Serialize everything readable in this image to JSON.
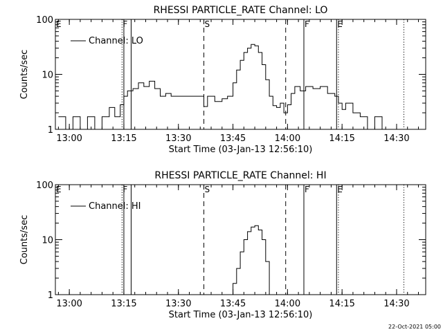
{
  "footer": {
    "timestamp": "22-Oct-2021 05:00"
  },
  "chart_data": [
    {
      "type": "line",
      "title": "RHESSI PARTICLE_RATE Channel: LO",
      "xlabel": "Start Time (03-Jan-13 12:56:10)",
      "ylabel": "Counts/sec",
      "y_scale": "log",
      "ylim": [
        1,
        100
      ],
      "xlim": [
        "12:56:10",
        "14:38:00"
      ],
      "x_ticks": [
        "13:00",
        "13:15",
        "13:30",
        "13:45",
        "14:00",
        "14:15",
        "14:30"
      ],
      "y_ticks": [
        "1",
        "10",
        "100"
      ],
      "legend": {
        "entry": "Channel: LO",
        "position": "top-left"
      },
      "markers": [
        {
          "label": "E",
          "time": "12:56:10",
          "style": "dotted"
        },
        {
          "label": "F",
          "time": "13:14:30",
          "style": "dotted"
        },
        {
          "label": "",
          "time": "13:15:00",
          "style": "solid"
        },
        {
          "label": "",
          "time": "13:17:00",
          "style": "solid"
        },
        {
          "label": "S",
          "time": "13:37:00",
          "style": "dashed"
        },
        {
          "label": "",
          "time": "13:59:30",
          "style": "dashed"
        },
        {
          "label": "F",
          "time": "14:04:30",
          "style": "solid"
        },
        {
          "label": "E",
          "time": "14:13:30",
          "style": "solid"
        },
        {
          "label": "",
          "time": "14:14:00",
          "style": "dotted"
        },
        {
          "label": "",
          "time": "14:32:00",
          "style": "dotted"
        }
      ],
      "series": [
        {
          "color": "#000000",
          "x": [
            "12:57:00",
            "12:59:00",
            "13:01:00",
            "13:03:00",
            "13:05:00",
            "13:07:00",
            "13:09:00",
            "13:11:00",
            "13:12:30",
            "13:14:00",
            "13:15:00",
            "13:16:00",
            "13:17:30",
            "13:19:00",
            "13:20:30",
            "13:22:00",
            "13:23:30",
            "13:25:00",
            "13:26:30",
            "13:28:00",
            "13:30:00",
            "13:32:00",
            "13:34:00",
            "13:36:00",
            "13:37:00",
            "13:38:00",
            "13:40:00",
            "13:42:00",
            "13:43:30",
            "13:45:00",
            "13:46:00",
            "13:47:00",
            "13:48:00",
            "13:49:00",
            "13:50:00",
            "13:51:00",
            "13:52:00",
            "13:53:00",
            "13:54:00",
            "13:55:00",
            "13:56:00",
            "13:57:00",
            "13:58:00",
            "13:59:00",
            "14:00:00",
            "14:01:00",
            "14:02:00",
            "14:03:30",
            "14:05:00",
            "14:07:00",
            "14:09:00",
            "14:11:00",
            "14:13:00",
            "14:14:00",
            "14:15:00",
            "14:16:00",
            "14:18:00",
            "14:20:00",
            "14:22:00",
            "14:24:00",
            "14:26:00",
            "14:28:00",
            "14:30:00",
            "14:32:00"
          ],
          "values": [
            1.7,
            1.0,
            1.7,
            1.0,
            1.7,
            1.0,
            1.7,
            2.5,
            1.7,
            2.8,
            4.0,
            5.0,
            5.5,
            7.0,
            6.0,
            7.5,
            5.5,
            4.0,
            4.5,
            4.0,
            4.0,
            4.0,
            4.0,
            4.0,
            2.6,
            4.0,
            3.2,
            3.6,
            4.0,
            7.0,
            12.0,
            18.0,
            25.0,
            30.0,
            35.0,
            33.0,
            25.0,
            15.0,
            8.0,
            4.0,
            2.7,
            2.5,
            3.0,
            2.0,
            2.8,
            4.5,
            6.0,
            5.0,
            6.0,
            5.5,
            6.0,
            4.5,
            4.0,
            3.0,
            2.3,
            3.0,
            2.0,
            1.7,
            1.0,
            1.7,
            1.0,
            1.0,
            1.0,
            1.0
          ]
        }
      ]
    },
    {
      "type": "line",
      "title": "RHESSI PARTICLE_RATE Channel: HI",
      "xlabel": "Start Time (03-Jan-13 12:56:10)",
      "ylabel": "Counts/sec",
      "y_scale": "log",
      "ylim": [
        1,
        100
      ],
      "xlim": [
        "12:56:10",
        "14:38:00"
      ],
      "x_ticks": [
        "13:00",
        "13:15",
        "13:30",
        "13:45",
        "14:00",
        "14:15",
        "14:30"
      ],
      "y_ticks": [
        "1",
        "10",
        "100"
      ],
      "legend": {
        "entry": "Channel: HI",
        "position": "top-left"
      },
      "markers": [
        {
          "label": "E",
          "time": "12:56:10",
          "style": "dotted"
        },
        {
          "label": "F",
          "time": "13:14:30",
          "style": "dotted"
        },
        {
          "label": "",
          "time": "13:15:00",
          "style": "solid"
        },
        {
          "label": "",
          "time": "13:17:00",
          "style": "solid"
        },
        {
          "label": "S",
          "time": "13:37:00",
          "style": "dashed"
        },
        {
          "label": "",
          "time": "13:59:30",
          "style": "dashed"
        },
        {
          "label": "F",
          "time": "14:04:30",
          "style": "solid"
        },
        {
          "label": "E",
          "time": "14:13:30",
          "style": "solid"
        },
        {
          "label": "",
          "time": "14:14:00",
          "style": "dotted"
        },
        {
          "label": "",
          "time": "14:32:00",
          "style": "dotted"
        }
      ],
      "series": [
        {
          "color": "#000000",
          "x": [
            "13:44:00",
            "13:45:00",
            "13:46:00",
            "13:47:00",
            "13:48:00",
            "13:49:00",
            "13:50:00",
            "13:51:00",
            "13:52:00",
            "13:53:00",
            "13:54:00",
            "13:55:00"
          ],
          "values": [
            1.0,
            1.6,
            3.0,
            6.0,
            10.0,
            14.0,
            17.0,
            18.0,
            15.0,
            10.0,
            4.0,
            1.0
          ]
        }
      ]
    }
  ]
}
